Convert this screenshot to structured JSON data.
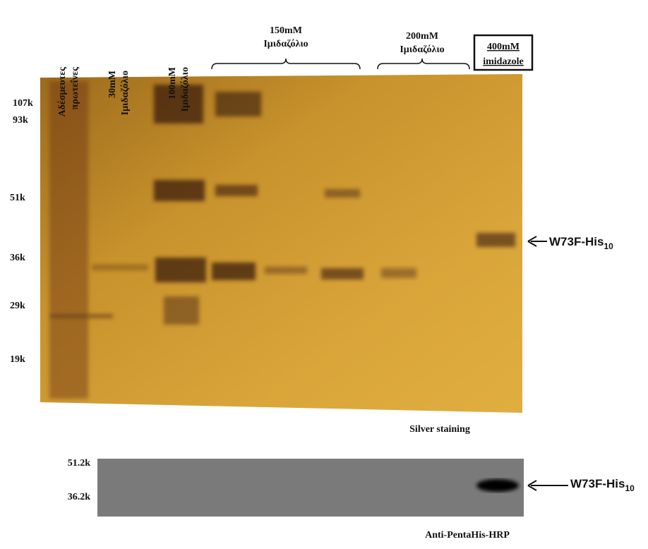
{
  "lanes": {
    "unbound": [
      "Αδέσμευτες",
      "πρωτεΐνες"
    ],
    "imidazole_30": [
      "30mM",
      "Ιμιδαζόλιο"
    ],
    "imidazole_100": [
      "100mM",
      "Ιμιδαζόλιο"
    ],
    "imidazole_150": [
      "150mM",
      "Ιμιδαζόλιο"
    ],
    "imidazole_200": [
      "200mM",
      "Ιμιδαζόλιο"
    ],
    "imidazole_400": [
      "400mM",
      "imidazole"
    ]
  },
  "gel": {
    "markers": [
      "107k",
      "93k",
      "51k",
      "36k",
      "29k",
      "19k"
    ],
    "caption": "Silver staining"
  },
  "protein": {
    "name": "W73F-His",
    "subscript": "10"
  },
  "blot": {
    "markers": [
      "51.2k",
      "36.2k"
    ],
    "caption": "Anti-PentaHis-HRP"
  }
}
